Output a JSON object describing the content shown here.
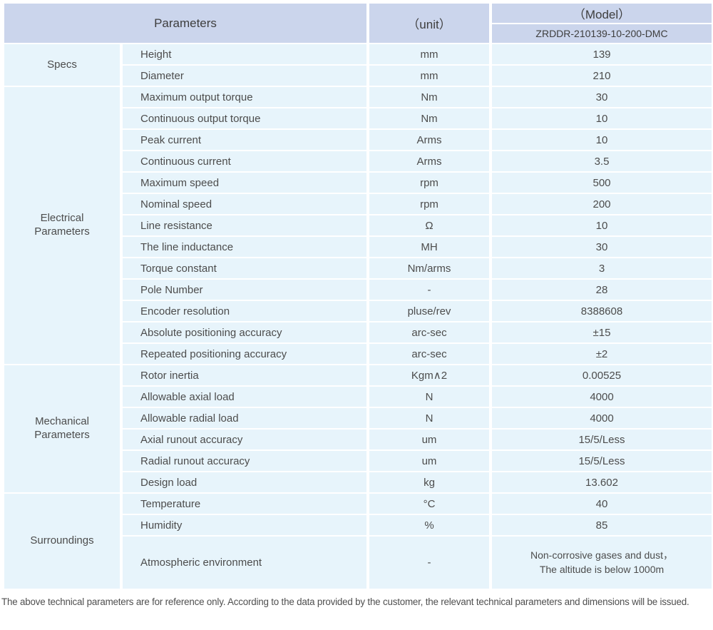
{
  "colors": {
    "header_bg": "#cbd5ec",
    "cell_bg": "#e7f4fb",
    "body_text": "#4c4c4c",
    "header_text": "#3e3e3e",
    "separator": "#ffffff"
  },
  "table": {
    "header": {
      "parameters_label": "Parameters",
      "unit_label": "（unit）",
      "model_label": "（Model）",
      "model_value": "ZRDDR-210139-10-200-DMC"
    },
    "sections": [
      {
        "category_lines": [
          "Specs"
        ],
        "rows": [
          {
            "name": "Height",
            "unit": "mm",
            "value": "139"
          },
          {
            "name": "Diameter",
            "unit": "mm",
            "value": "210"
          }
        ]
      },
      {
        "category_lines": [
          "Electrical",
          "Parameters"
        ],
        "rows": [
          {
            "name": "Maximum output torque",
            "unit": "Nm",
            "value": "30"
          },
          {
            "name": "Continuous output torque",
            "unit": "Nm",
            "value": "10"
          },
          {
            "name": "Peak current",
            "unit": "Arms",
            "value": "10"
          },
          {
            "name": "Continuous current",
            "unit": "Arms",
            "value": "3.5"
          },
          {
            "name": "Maximum speed",
            "unit": "rpm",
            "value": "500"
          },
          {
            "name": "Nominal speed",
            "unit": "rpm",
            "value": "200"
          },
          {
            "name": "Line resistance",
            "unit": "Ω",
            "value": "10"
          },
          {
            "name": "The line inductance",
            "unit": "MH",
            "value": "30"
          },
          {
            "name": "Torque constant",
            "unit": "Nm/arms",
            "value": "3"
          },
          {
            "name": "Pole Number",
            "unit": "-",
            "value": "28"
          },
          {
            "name": "Encoder resolution",
            "unit": "pluse/rev",
            "value": "8388608"
          },
          {
            "name": "Absolute positioning accuracy",
            "unit": "arc-sec",
            "value": "±15"
          },
          {
            "name": "Repeated positioning accuracy",
            "unit": "arc-sec",
            "value": "±2"
          }
        ]
      },
      {
        "category_lines": [
          "Mechanical",
          "Parameters"
        ],
        "rows": [
          {
            "name": "Rotor inertia",
            "unit": "Kgm∧2",
            "value": "0.00525"
          },
          {
            "name": "Allowable axial load",
            "unit": "N",
            "value": "4000"
          },
          {
            "name": "Allowable radial load",
            "unit": "N",
            "value": "4000"
          },
          {
            "name": "Axial runout accuracy",
            "unit": "um",
            "value": "15/5/Less"
          },
          {
            "name": "Radial runout accuracy",
            "unit": "um",
            "value": "15/5/Less"
          },
          {
            "name": "Design load",
            "unit": "kg",
            "value": "13.602"
          }
        ]
      },
      {
        "category_lines": [
          "Surroundings"
        ],
        "rows": [
          {
            "name": "Temperature",
            "unit": "°C",
            "value": "40"
          },
          {
            "name": "Humidity",
            "unit": "%",
            "value": "85"
          },
          {
            "name": "Atmospheric environment",
            "unit": "-",
            "value_lines": [
              "Non-corrosive gases and dust，",
              "The altitude is below 1000m"
            ],
            "tall": true
          }
        ]
      }
    ]
  },
  "footnote": "The above technical parameters are for reference only. According to the data provided by the customer, the relevant technical parameters and dimensions will be issued."
}
